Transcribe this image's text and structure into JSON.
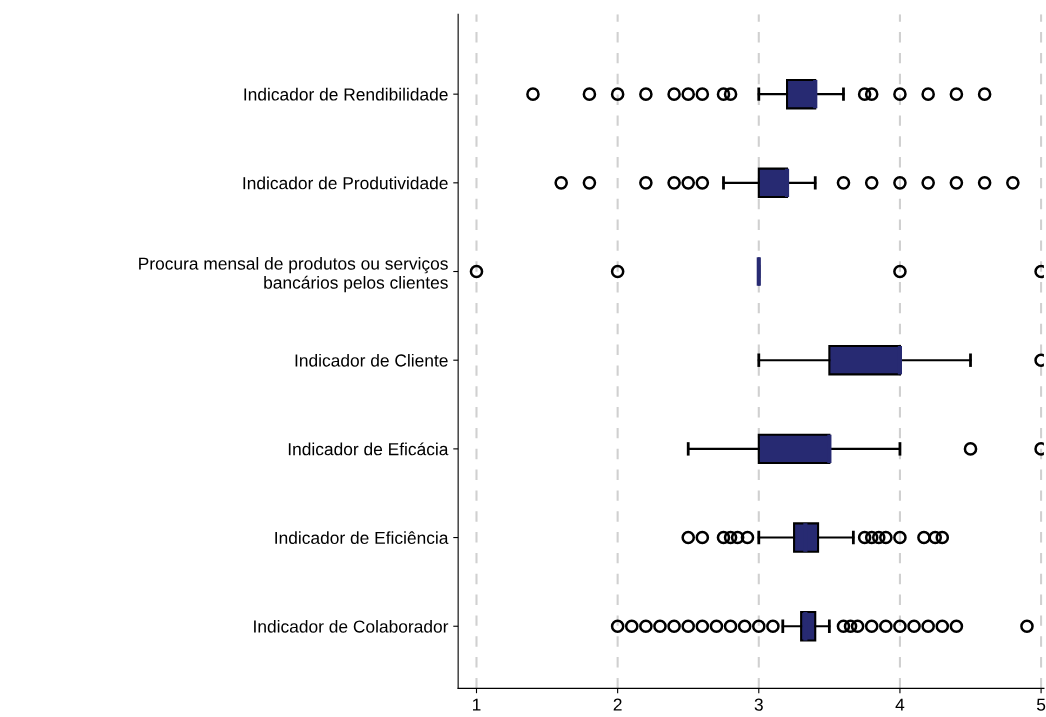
{
  "chart_data": {
    "type": "box",
    "orientation": "horizontal",
    "categories": [
      "Indicador de Rendibilidade",
      "Indicador de Produtividade",
      "Procura mensal de produtos ou serviços\nbancários pelos clientes",
      "Indicador de Cliente",
      "Indicador de Eficácia",
      "Indicador de Eficiência",
      "Indicador de Colaborador"
    ],
    "series": [
      {
        "color": "#272a72",
        "boxes": [
          {
            "low": 3.0,
            "q1": 3.2,
            "median": 3.4,
            "q3": 3.4,
            "high": 3.6,
            "outliers": [
              1.4,
              1.8,
              2.0,
              2.2,
              2.4,
              2.5,
              2.6,
              2.75,
              2.8,
              3.75,
              3.8,
              4.0,
              4.2,
              4.4,
              4.6
            ]
          },
          {
            "low": 2.75,
            "q1": 3.0,
            "median": 3.2,
            "q3": 3.2,
            "high": 3.4,
            "outliers": [
              1.6,
              1.8,
              2.2,
              2.4,
              2.5,
              2.6,
              3.6,
              3.8,
              4.0,
              4.2,
              4.4,
              4.6,
              4.8
            ]
          },
          {
            "low": 3.0,
            "q1": 3.0,
            "median": 3.0,
            "q3": 3.0,
            "high": 3.0,
            "outliers": [
              1.0,
              2.0,
              4.0,
              5.0
            ]
          },
          {
            "low": 3.0,
            "q1": 3.5,
            "median": 4.0,
            "q3": 4.0,
            "high": 4.5,
            "outliers": [
              5.0
            ]
          },
          {
            "low": 2.5,
            "q1": 3.0,
            "median": 3.5,
            "q3": 3.5,
            "high": 4.0,
            "outliers": [
              4.5,
              5.0
            ]
          },
          {
            "low": 3.0,
            "q1": 3.25,
            "median": 3.33,
            "q3": 3.42,
            "high": 3.67,
            "outliers": [
              2.5,
              2.6,
              2.75,
              2.8,
              2.85,
              2.92,
              3.75,
              3.8,
              3.85,
              3.9,
              4.0,
              4.17,
              4.25,
              4.3
            ]
          },
          {
            "low": 3.17,
            "q1": 3.3,
            "median": 3.33,
            "q3": 3.4,
            "high": 3.5,
            "outliers": [
              2.0,
              2.1,
              2.2,
              2.3,
              2.4,
              2.5,
              2.6,
              2.7,
              2.8,
              2.9,
              3.0,
              3.1,
              3.6,
              3.65,
              3.7,
              3.8,
              3.9,
              4.0,
              4.1,
              4.2,
              4.3,
              4.4,
              4.9
            ]
          }
        ]
      }
    ],
    "xlim": [
      0.87,
      5.02
    ],
    "xticks": [
      1,
      2,
      3,
      4,
      5
    ],
    "grid": "x",
    "marker": "circle"
  }
}
